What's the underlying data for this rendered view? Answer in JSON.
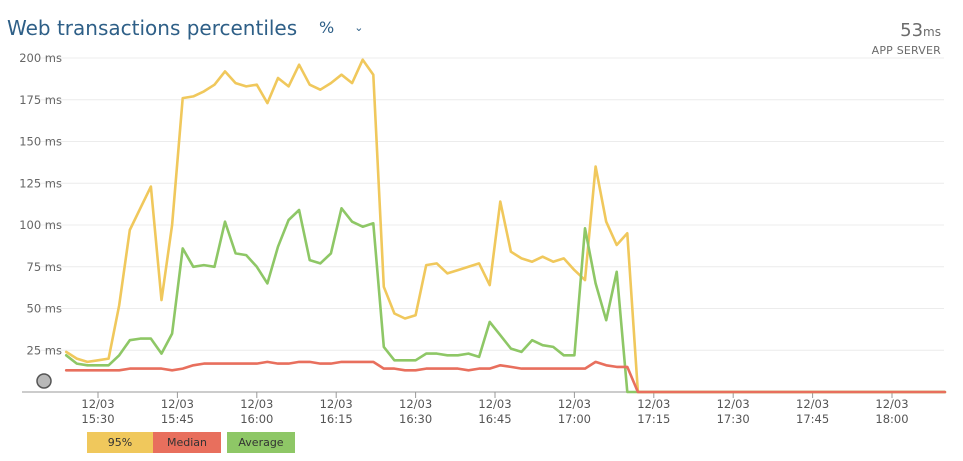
{
  "header": {
    "title": "Web transactions percentiles",
    "unit_selector": "%",
    "metric_value": "53",
    "metric_unit": "ms",
    "metric_label": "APP SERVER"
  },
  "legend": [
    {
      "label": "95%",
      "color": "#f0c85c"
    },
    {
      "label": "Median",
      "color": "#e86f5d"
    },
    {
      "label": "Average",
      "color": "#8ec766"
    }
  ],
  "chart_data": {
    "type": "line",
    "ylabel_unit": "ms",
    "ylim": [
      0,
      200
    ],
    "y_ticks": [
      "200 ms",
      "175 ms",
      "150 ms",
      "125 ms",
      "100 ms",
      "75 ms",
      "50 ms",
      "25 ms"
    ],
    "x_ticks": [
      {
        "date": "12/03",
        "time": "15:30"
      },
      {
        "date": "12/03",
        "time": "15:45"
      },
      {
        "date": "12/03",
        "time": "16:00"
      },
      {
        "date": "12/03",
        "time": "16:15"
      },
      {
        "date": "12/03",
        "time": "16:30"
      },
      {
        "date": "12/03",
        "time": "16:45"
      },
      {
        "date": "12/03",
        "time": "17:00"
      },
      {
        "date": "12/03",
        "time": "17:15"
      },
      {
        "date": "12/03",
        "time": "17:30"
      },
      {
        "date": "12/03",
        "time": "17:45"
      },
      {
        "date": "12/03",
        "time": "18:00"
      }
    ],
    "x": [
      "15:24",
      "15:26",
      "15:28",
      "15:30",
      "15:32",
      "15:34",
      "15:36",
      "15:38",
      "15:40",
      "15:42",
      "15:44",
      "15:46",
      "15:48",
      "15:50",
      "15:52",
      "15:54",
      "15:56",
      "15:58",
      "16:00",
      "16:02",
      "16:04",
      "16:06",
      "16:08",
      "16:10",
      "16:12",
      "16:14",
      "16:16",
      "16:18",
      "16:20",
      "16:22",
      "16:24",
      "16:26",
      "16:28",
      "16:30",
      "16:32",
      "16:34",
      "16:36",
      "16:38",
      "16:40",
      "16:42",
      "16:44",
      "16:46",
      "16:48",
      "16:50",
      "16:52",
      "16:54",
      "16:56",
      "16:58",
      "17:00",
      "17:02",
      "17:04",
      "17:06",
      "17:08",
      "17:10",
      "17:12",
      "17:14",
      "17:16",
      "17:18",
      "17:20",
      "17:22",
      "17:24",
      "17:26",
      "17:28",
      "17:30",
      "17:32",
      "17:34",
      "17:36",
      "17:38",
      "17:40",
      "17:42",
      "17:44",
      "17:46",
      "17:48",
      "17:50",
      "17:52",
      "17:54",
      "17:56",
      "17:58",
      "18:00",
      "18:02",
      "18:04",
      "18:06",
      "18:08",
      "18:10"
    ],
    "series": [
      {
        "name": "95%",
        "color": "#f0c85c",
        "values": [
          24,
          20,
          18,
          19,
          20,
          52,
          97,
          110,
          123,
          55,
          100,
          176,
          177,
          180,
          184,
          192,
          185,
          183,
          184,
          173,
          188,
          183,
          196,
          184,
          181,
          185,
          190,
          185,
          199,
          190,
          63,
          47,
          44,
          46,
          76,
          77,
          71,
          73,
          75,
          77,
          64,
          114,
          84,
          80,
          78,
          81,
          78,
          80,
          73,
          67,
          135,
          102,
          88,
          95,
          0,
          0,
          0,
          0,
          0,
          0,
          0,
          0,
          0,
          0,
          0,
          0,
          0,
          0,
          0,
          0,
          0,
          0,
          0,
          0,
          0,
          0,
          0,
          0,
          0,
          0,
          0,
          0,
          0,
          0
        ]
      },
      {
        "name": "Median",
        "color": "#e86f5d",
        "values": [
          13,
          13,
          13,
          13,
          13,
          13,
          14,
          14,
          14,
          14,
          13,
          14,
          16,
          17,
          17,
          17,
          17,
          17,
          17,
          18,
          17,
          17,
          18,
          18,
          17,
          17,
          18,
          18,
          18,
          18,
          14,
          14,
          13,
          13,
          14,
          14,
          14,
          14,
          13,
          14,
          14,
          16,
          15,
          14,
          14,
          14,
          14,
          14,
          14,
          14,
          18,
          16,
          15,
          15,
          0,
          0,
          0,
          0,
          0,
          0,
          0,
          0,
          0,
          0,
          0,
          0,
          0,
          0,
          0,
          0,
          0,
          0,
          0,
          0,
          0,
          0,
          0,
          0,
          0,
          0,
          0,
          0,
          0,
          0
        ]
      },
      {
        "name": "Average",
        "color": "#8ec766",
        "values": [
          22,
          17,
          16,
          16,
          16,
          22,
          31,
          32,
          32,
          23,
          35,
          86,
          75,
          76,
          75,
          102,
          83,
          82,
          75,
          65,
          87,
          103,
          109,
          79,
          77,
          83,
          110,
          102,
          99,
          101,
          27,
          19,
          19,
          19,
          23,
          23,
          22,
          22,
          23,
          21,
          42,
          34,
          26,
          24,
          31,
          28,
          27,
          22,
          22,
          98,
          65,
          43,
          72,
          0,
          0,
          0,
          0,
          0,
          0,
          0,
          0,
          0,
          0,
          0,
          0,
          0,
          0,
          0,
          0,
          0,
          0,
          0,
          0,
          0,
          0,
          0,
          0,
          0,
          0,
          0,
          0,
          0,
          0,
          0
        ]
      }
    ]
  }
}
